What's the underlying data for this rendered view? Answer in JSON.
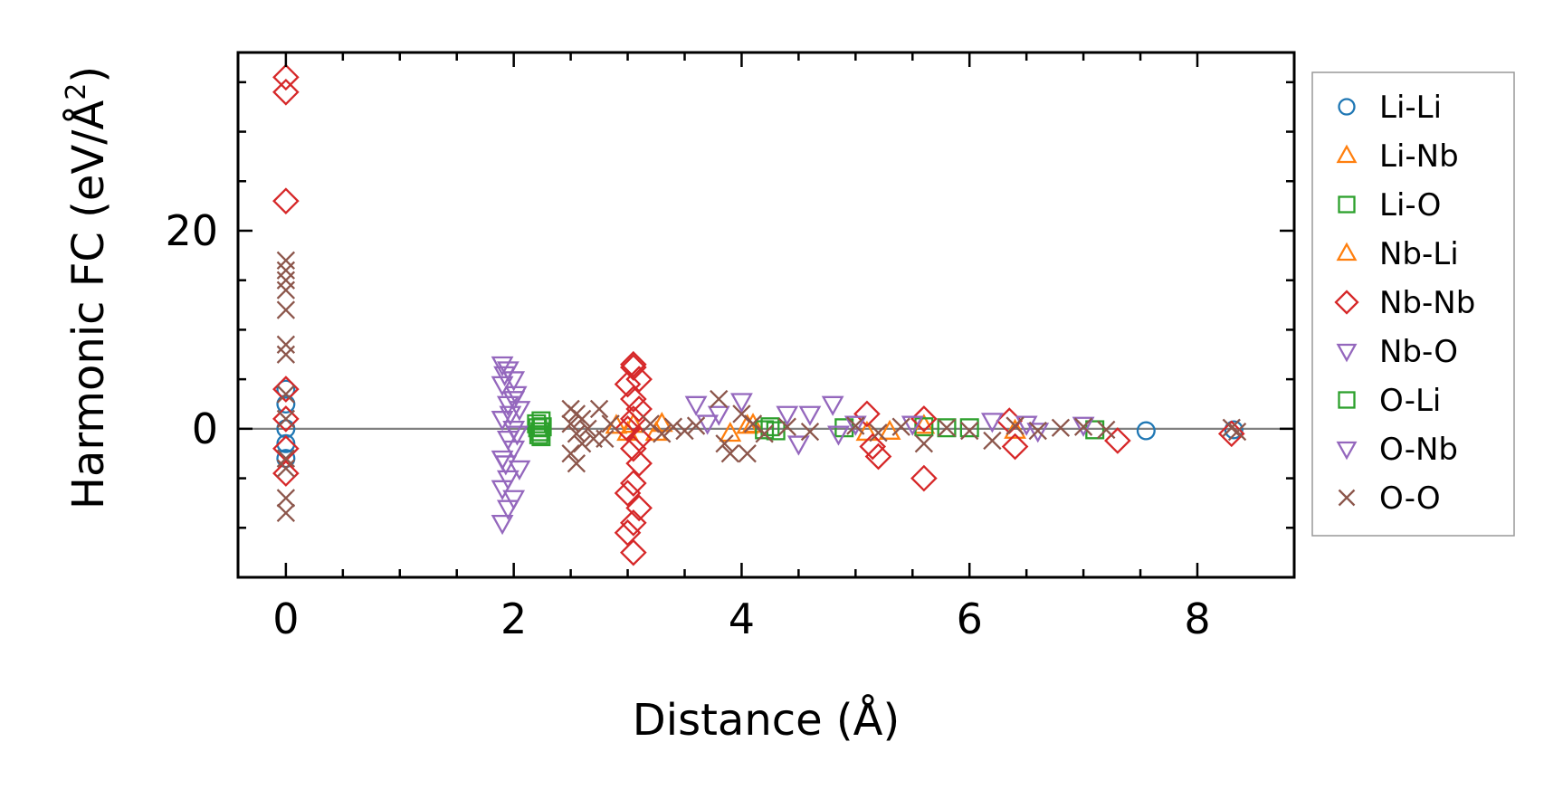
{
  "chart_data": {
    "type": "scatter",
    "title": "",
    "xlabel": "Distance (Å)",
    "ylabel_main": "Harmonic FC (eV/Å",
    "ylabel_sup": "2",
    "ylabel_close": ")",
    "xlim": [
      -0.42,
      8.85
    ],
    "ylim": [
      -15,
      38
    ],
    "xticks": [
      0,
      2,
      4,
      6,
      8
    ],
    "xtick_labels": [
      "0",
      "2",
      "4",
      "6",
      "8"
    ],
    "yticks": [
      0,
      20
    ],
    "ytick_labels": [
      "0",
      "20"
    ],
    "zero_line": true,
    "grid": false,
    "legend_position": "outside-right",
    "series": [
      {
        "name": "Li-Li",
        "marker": "circle",
        "color": "#1f77b4",
        "points": [
          [
            0,
            4
          ],
          [
            0,
            2.5
          ],
          [
            0,
            0
          ],
          [
            0,
            -1.5
          ],
          [
            0,
            -3
          ],
          [
            7.55,
            -0.2
          ],
          [
            8.32,
            -0.1
          ]
        ]
      },
      {
        "name": "Li-Nb",
        "marker": "triangle-up",
        "color": "#ff7f0e",
        "points": [
          [
            2.9,
            0.3
          ],
          [
            3.0,
            -0.4
          ],
          [
            3.3,
            0.5
          ],
          [
            3.9,
            -0.5
          ],
          [
            4.1,
            0.4
          ],
          [
            5.1,
            -0.4
          ],
          [
            5.6,
            0.3
          ],
          [
            6.4,
            -0.2
          ]
        ]
      },
      {
        "name": "Li-O",
        "marker": "square",
        "color": "#2ca02c",
        "points": [
          [
            2.2,
            0.5
          ],
          [
            2.23,
            -0.3
          ],
          [
            2.25,
            0.2
          ],
          [
            2.22,
            -0.6
          ],
          [
            2.24,
            0.8
          ],
          [
            4.25,
            0.2
          ],
          [
            4.3,
            -0.2
          ],
          [
            4.9,
            0.1
          ],
          [
            5.6,
            0.2
          ],
          [
            6.0,
            0.1
          ],
          [
            7.1,
            -0.1
          ]
        ]
      },
      {
        "name": "Nb-Li",
        "marker": "triangle-up",
        "color": "#ff7f0e",
        "points": [
          [
            3.05,
            0.4
          ],
          [
            3.25,
            -0.4
          ],
          [
            4.05,
            0.3
          ],
          [
            5.3,
            -0.3
          ]
        ]
      },
      {
        "name": "Nb-Nb",
        "marker": "diamond",
        "color": "#d62728",
        "points": [
          [
            0,
            35.5
          ],
          [
            0,
            34
          ],
          [
            0,
            23
          ],
          [
            0,
            4
          ],
          [
            0,
            1
          ],
          [
            0,
            -2
          ],
          [
            0,
            -4.5
          ],
          [
            3.05,
            6.5
          ],
          [
            3.05,
            6.2
          ],
          [
            3.1,
            5
          ],
          [
            3.0,
            4.5
          ],
          [
            3.05,
            3
          ],
          [
            3.1,
            2
          ],
          [
            3.05,
            1
          ],
          [
            3.0,
            0
          ],
          [
            3.1,
            -1
          ],
          [
            3.05,
            -2
          ],
          [
            3.1,
            -3.5
          ],
          [
            3.05,
            -5.5
          ],
          [
            3.0,
            -6.5
          ],
          [
            3.1,
            -8
          ],
          [
            3.05,
            -9.5
          ],
          [
            3.0,
            -10.5
          ],
          [
            3.05,
            -12.5
          ],
          [
            5.1,
            1.5
          ],
          [
            5.15,
            -1.8
          ],
          [
            5.2,
            -2.8
          ],
          [
            5.6,
            -5
          ],
          [
            5.6,
            1
          ],
          [
            6.35,
            0.8
          ],
          [
            6.4,
            -1.8
          ],
          [
            7.3,
            -1.2
          ],
          [
            8.3,
            -0.5
          ]
        ]
      },
      {
        "name": "Nb-O",
        "marker": "triangle-down",
        "color": "#9467bd",
        "points": [
          [
            1.9,
            6.5
          ],
          [
            1.95,
            6
          ],
          [
            2.0,
            5
          ],
          [
            1.9,
            4.5
          ],
          [
            2.0,
            3
          ],
          [
            1.95,
            2.5
          ],
          [
            2.05,
            2
          ],
          [
            1.9,
            1
          ],
          [
            2.0,
            0
          ],
          [
            1.95,
            -1
          ],
          [
            2.0,
            -2
          ],
          [
            1.9,
            -3
          ],
          [
            2.05,
            -4
          ],
          [
            1.95,
            -5
          ],
          [
            1.9,
            -6
          ],
          [
            2.0,
            -7
          ],
          [
            1.95,
            -8
          ],
          [
            1.9,
            -9.5
          ],
          [
            3.6,
            2.5
          ],
          [
            3.8,
            1.5
          ],
          [
            4.0,
            2.8
          ],
          [
            4.4,
            1.5
          ],
          [
            4.6,
            1.5
          ],
          [
            4.8,
            2.5
          ],
          [
            5.0,
            0.5
          ],
          [
            5.5,
            0.5
          ],
          [
            6.2,
            0.8
          ],
          [
            6.5,
            0.5
          ],
          [
            7.0,
            0.4
          ]
        ]
      },
      {
        "name": "O-Li",
        "marker": "square",
        "color": "#2ca02c",
        "points": [
          [
            2.21,
            0.1
          ],
          [
            2.24,
            -0.8
          ],
          [
            4.2,
            -0.1
          ],
          [
            5.8,
            0.1
          ]
        ]
      },
      {
        "name": "O-Nb",
        "marker": "triangle-down",
        "color": "#9467bd",
        "points": [
          [
            1.92,
            5.5
          ],
          [
            2.02,
            3.5
          ],
          [
            1.97,
            1.5
          ],
          [
            2.03,
            -0.5
          ],
          [
            1.93,
            -3.5
          ],
          [
            3.7,
            0.6
          ],
          [
            4.5,
            -1.5
          ],
          [
            4.85,
            -0.5
          ],
          [
            6.6,
            -0.2
          ]
        ]
      },
      {
        "name": "O-O",
        "marker": "x",
        "color": "#8c564b",
        "points": [
          [
            0,
            17
          ],
          [
            0,
            16
          ],
          [
            0,
            15
          ],
          [
            0,
            14
          ],
          [
            0,
            12
          ],
          [
            0,
            8.5
          ],
          [
            0,
            7.5
          ],
          [
            0,
            3.5
          ],
          [
            0,
            1
          ],
          [
            0,
            -3
          ],
          [
            0,
            -4
          ],
          [
            0,
            -7
          ],
          [
            0,
            -8.5
          ],
          [
            2.5,
            2
          ],
          [
            2.55,
            1.5
          ],
          [
            2.6,
            1
          ],
          [
            2.5,
            0.5
          ],
          [
            2.65,
            0
          ],
          [
            2.55,
            -0.5
          ],
          [
            2.7,
            -1
          ],
          [
            2.6,
            -1.5
          ],
          [
            2.5,
            -2.5
          ],
          [
            2.55,
            -3.5
          ],
          [
            2.75,
            2
          ],
          [
            2.8,
            -1
          ],
          [
            2.85,
            0.5
          ],
          [
            3.2,
            0.5
          ],
          [
            3.3,
            -0.5
          ],
          [
            3.4,
            0.2
          ],
          [
            3.5,
            -0.2
          ],
          [
            3.6,
            0.3
          ],
          [
            3.8,
            3
          ],
          [
            3.85,
            -1.5
          ],
          [
            3.9,
            -2.5
          ],
          [
            4.0,
            1.5
          ],
          [
            4.05,
            -2.5
          ],
          [
            4.1,
            0.5
          ],
          [
            4.2,
            -0.5
          ],
          [
            4.4,
            0.2
          ],
          [
            4.6,
            -0.3
          ],
          [
            5.0,
            0.3
          ],
          [
            5.2,
            -0.4
          ],
          [
            5.4,
            0.2
          ],
          [
            5.6,
            -1.5
          ],
          [
            5.8,
            0.1
          ],
          [
            6.0,
            -0.2
          ],
          [
            6.2,
            -1.2
          ],
          [
            6.4,
            0.3
          ],
          [
            6.6,
            -0.2
          ],
          [
            6.8,
            0.1
          ],
          [
            7.0,
            0.2
          ],
          [
            7.2,
            -0.1
          ],
          [
            8.3,
            0.1
          ],
          [
            8.35,
            -0.3
          ]
        ]
      }
    ],
    "legend": [
      {
        "name": "Li-Li",
        "marker": "circle",
        "color": "#1f77b4"
      },
      {
        "name": "Li-Nb",
        "marker": "triangle-up",
        "color": "#ff7f0e"
      },
      {
        "name": "Li-O",
        "marker": "square",
        "color": "#2ca02c"
      },
      {
        "name": "Nb-Li",
        "marker": "triangle-up",
        "color": "#ff7f0e"
      },
      {
        "name": "Nb-Nb",
        "marker": "diamond",
        "color": "#d62728"
      },
      {
        "name": "Nb-O",
        "marker": "triangle-down",
        "color": "#9467bd"
      },
      {
        "name": "O-Li",
        "marker": "square",
        "color": "#2ca02c"
      },
      {
        "name": "O-Nb",
        "marker": "triangle-down",
        "color": "#9467bd"
      },
      {
        "name": "O-O",
        "marker": "x",
        "color": "#8c564b"
      }
    ]
  }
}
